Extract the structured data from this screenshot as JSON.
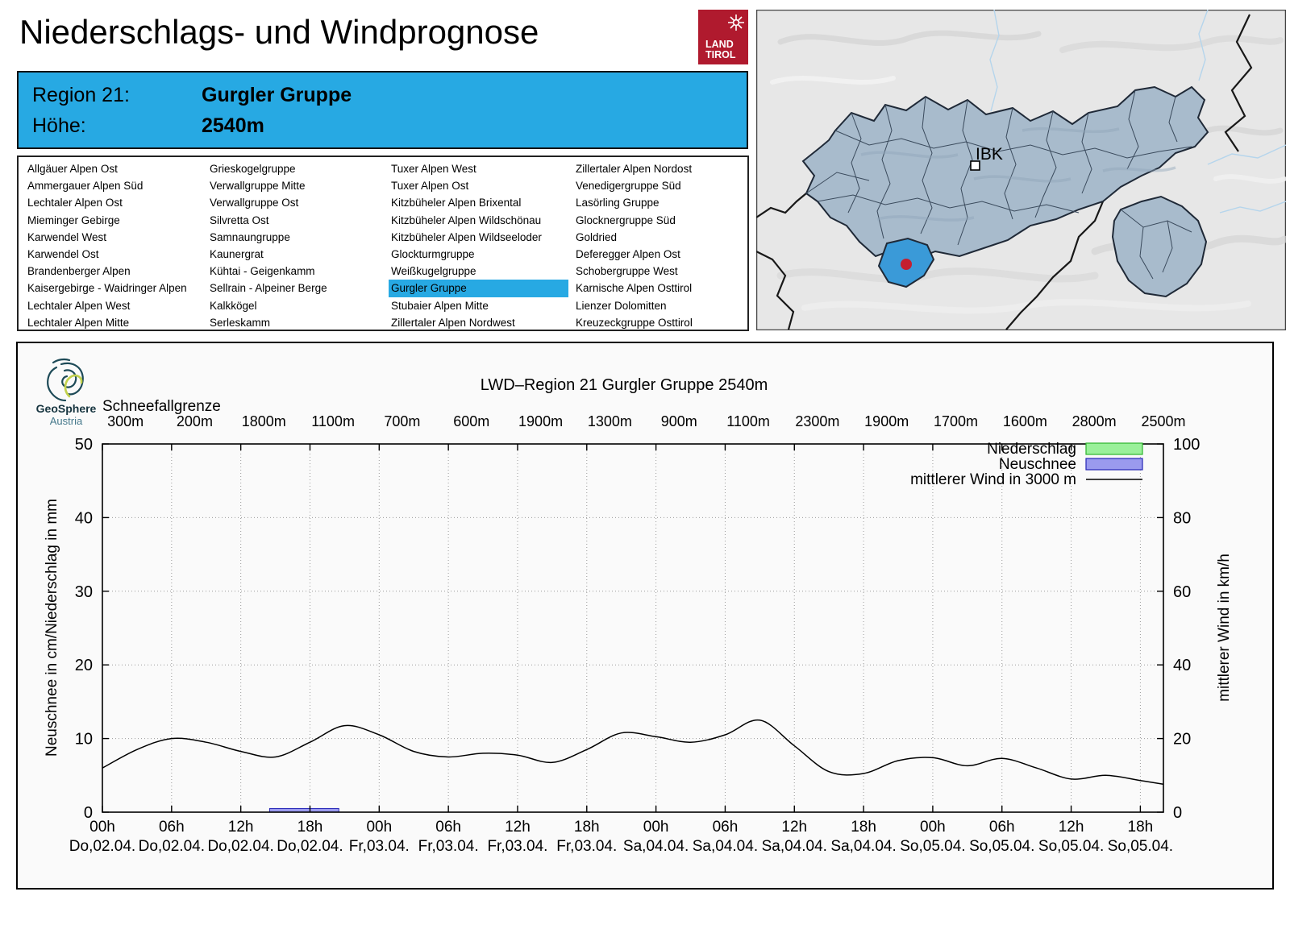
{
  "page": {
    "title": "Niederschlags- und Windprognose"
  },
  "land_tirol_logo": {
    "line1": "LAND",
    "line2": "TIROL"
  },
  "region_header": {
    "region_label": "Region 21:",
    "region_name": "Gurgler Gruppe",
    "altitude_label": "Höhe:",
    "altitude_value": "2540m"
  },
  "region_list": {
    "selected": "Gurgler Gruppe",
    "columns": [
      [
        "Allgäuer Alpen Ost",
        "Ammergauer Alpen Süd",
        "Lechtaler Alpen Ost",
        "Mieminger Gebirge",
        "Karwendel West",
        "Karwendel Ost",
        "Brandenberger Alpen",
        "Kaisergebirge - Waidringer Alpen",
        "Lechtaler Alpen West",
        "Lechtaler Alpen Mitte"
      ],
      [
        "Grieskogelgruppe",
        "Verwallgruppe Mitte",
        "Verwallgruppe Ost",
        "Silvretta Ost",
        "Samnaungruppe",
        "Kaunergrat",
        "Kühtai - Geigenkamm",
        "Sellrain - Alpeiner Berge",
        "Kalkkögel",
        "Serleskamm"
      ],
      [
        "Tuxer Alpen West",
        "Tuxer Alpen Ost",
        "Kitzbüheler Alpen Brixental",
        "Kitzbüheler Alpen Wildschönau",
        "Kitzbüheler Alpen Wildseeloder",
        "Glockturmgruppe",
        "Weißkugelgruppe",
        "Gurgler Gruppe",
        "Stubaier Alpen Mitte",
        "Zillertaler Alpen Nordwest"
      ],
      [
        "Zillertaler Alpen Nordost",
        "Venedigergruppe Süd",
        "Lasörling Gruppe",
        "Glocknergruppe Süd",
        "Goldried",
        "Deferegger Alpen Ost",
        "Schobergruppe West",
        "Karnische Alpen Osttirol",
        "Lienzer Dolomitten",
        "Kreuzeckgruppe Osttirol"
      ]
    ]
  },
  "map": {
    "city_label": "IBK"
  },
  "geosphere_logo": {
    "line1": "GeoSphere",
    "line2": "Austria"
  },
  "chart_data": {
    "type": "line",
    "title": "LWD–Region 21 Gurgler Gruppe 2540m",
    "snowline_label": "Schneefallgrenze",
    "snowline_values": [
      "300m",
      "200m",
      "1800m",
      "1100m",
      "700m",
      "600m",
      "1900m",
      "1300m",
      "900m",
      "1100m",
      "2300m",
      "1900m",
      "1700m",
      "1600m",
      "2800m",
      "2500m"
    ],
    "ylabel_left": "Neuschnee in cm/Niederschlag in mm",
    "ylabel_right": "mittlerer Wind in km/h",
    "ylim_left": [
      0,
      50
    ],
    "ylim_right": [
      0,
      100
    ],
    "yticks_left": [
      0,
      10,
      20,
      30,
      40,
      50
    ],
    "yticks_right": [
      0,
      20,
      40,
      60,
      80,
      100
    ],
    "x_hour_labels": [
      "00h",
      "06h",
      "12h",
      "18h",
      "00h",
      "06h",
      "12h",
      "18h",
      "00h",
      "06h",
      "12h",
      "18h",
      "00h",
      "06h",
      "12h",
      "18h"
    ],
    "x_date_labels": [
      "Do,02.04.",
      "Do,02.04.",
      "Do,02.04.",
      "Do,02.04.",
      "Fr,03.04.",
      "Fr,03.04.",
      "Fr,03.04.",
      "Fr,03.04.",
      "Sa,04.04.",
      "Sa,04.04.",
      "Sa,04.04.",
      "Sa,04.04.",
      "So,05.04.",
      "So,05.04.",
      "So,05.04.",
      "So,05.04."
    ],
    "x_span_hours": [
      0,
      92
    ],
    "legend": [
      {
        "label": "Niederschlag",
        "fill": "#9af09a",
        "border": "#2db32d"
      },
      {
        "label": "Neuschnee",
        "fill": "#9a9aee",
        "border": "#2525b5"
      },
      {
        "label": "mittlerer Wind in 3000 m",
        "line": "#000000"
      }
    ],
    "series": [
      {
        "name": "mittlerer Wind in 3000 m",
        "type": "line",
        "axis": "right",
        "unit": "km/h",
        "hours": [
          0,
          3,
          6,
          9,
          12,
          15,
          18,
          21,
          24,
          27,
          30,
          33,
          36,
          39,
          42,
          45,
          48,
          51,
          54,
          57,
          60,
          63,
          66,
          69,
          72,
          75,
          78,
          81,
          84,
          87,
          90,
          92
        ],
        "values": [
          12,
          17,
          20,
          19,
          16.5,
          15,
          19,
          23.5,
          21,
          16.5,
          15,
          16,
          15.5,
          13.5,
          17,
          21.5,
          20.5,
          19,
          21,
          25,
          18,
          11,
          10.5,
          14,
          14.8,
          12.6,
          14.6,
          12,
          9,
          10,
          8.6,
          7.6
        ]
      },
      {
        "name": "Neuschnee",
        "type": "bar",
        "axis": "left",
        "unit": "cm",
        "segments": [
          {
            "start_hour": 14.5,
            "end_hour": 20.5,
            "value": 0.5
          }
        ]
      },
      {
        "name": "Niederschlag",
        "type": "bar",
        "axis": "left",
        "unit": "mm",
        "segments": []
      }
    ]
  }
}
